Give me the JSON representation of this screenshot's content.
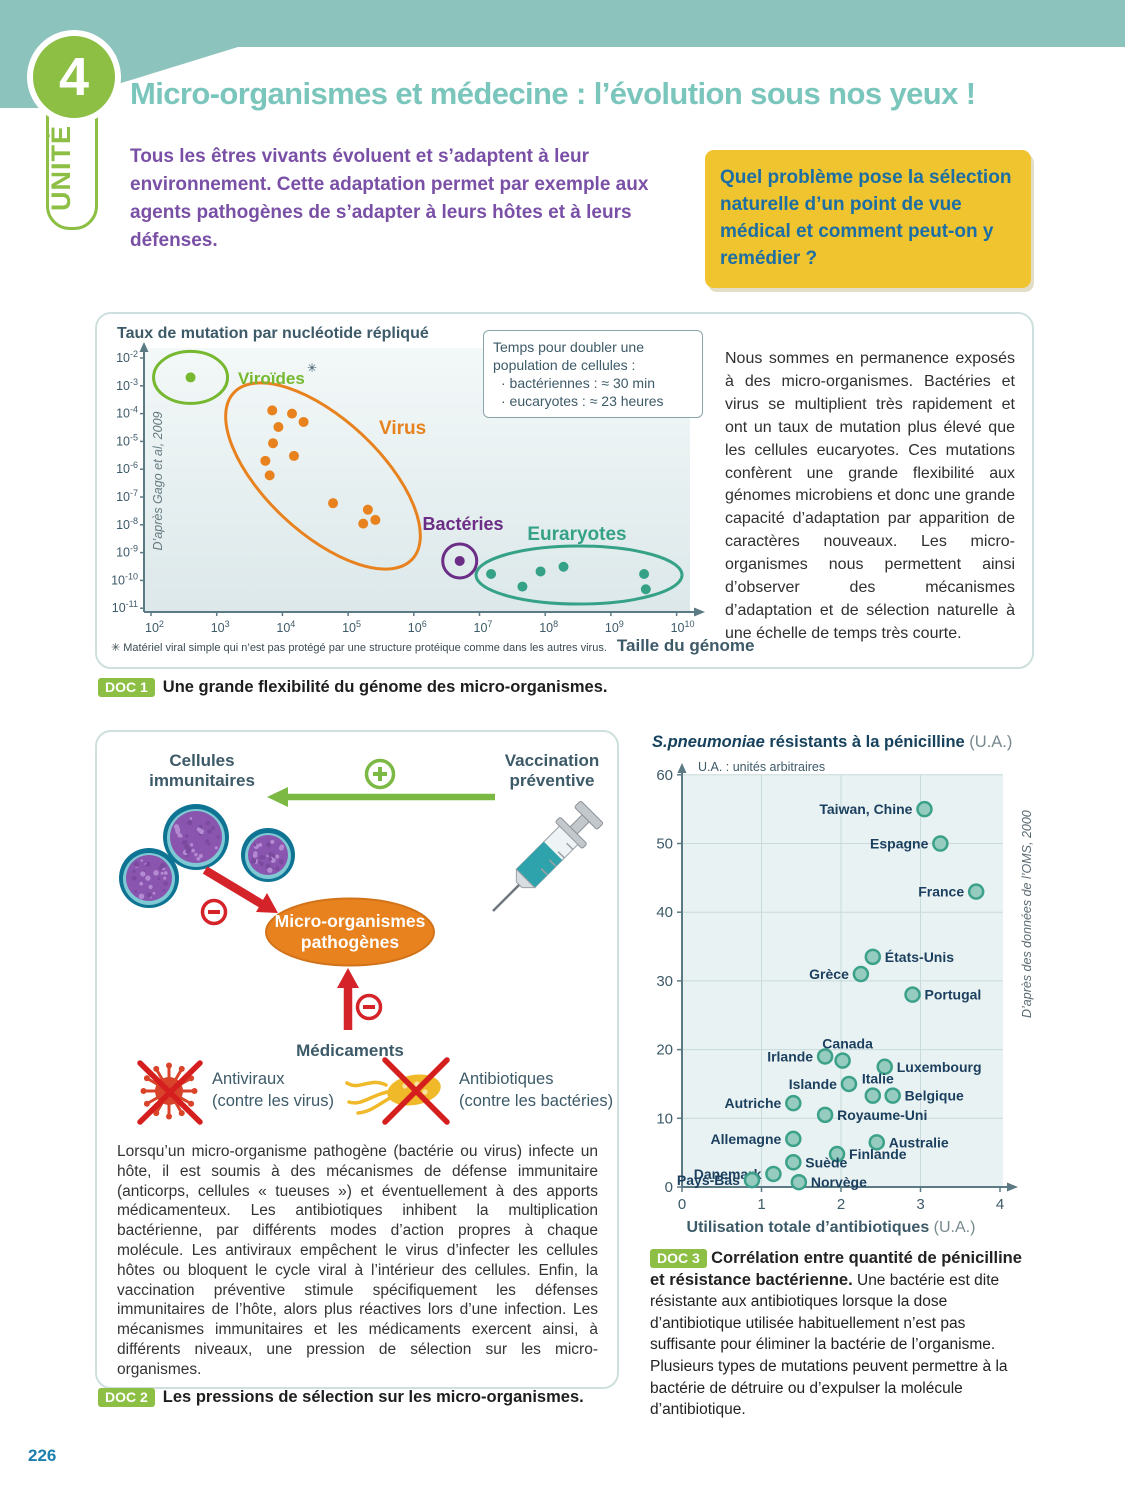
{
  "page": {
    "number": "226"
  },
  "header": {
    "unit_number": "4",
    "unit_label": "UNITÉ",
    "title": "Micro-organismes et médecine : l’évolution sous nos yeux !",
    "intro": "Tous les êtres vivants évoluent et s’adaptent à leur environnement. Cette adaptation permet par exemple aux agents pathogènes de s’adapter à leurs hôtes et à leurs défenses.",
    "question": "Quel problème pose la sélection naturelle d’un point de vue médical et comment peut-on y remédier ?"
  },
  "doc1": {
    "badge": "DOC 1",
    "caption": "Une grande flexibilité du génome des micro-organismes.",
    "source": "D’après Gago et al, 2009",
    "asterisk": "✳",
    "legend": {
      "title": "Temps pour doubler une population de cellules :",
      "items": [
        "· bactériennes : ≈ 30 min",
        "· eucaryotes : ≈ 23 heures"
      ]
    },
    "side_text": "Nous sommes en permanence exposés à des micro-organismes. Bactéries et virus se multiplient très rapidement et ont un taux de mutation plus élevé que les cellules eucaryotes. Ces mutations confèrent une grande flexibilité aux génomes microbiens et donc une grande capacité d’adaptation par apparition de caractères nouveaux. Les micro-organismes nous permettent ainsi d’observer des mécanismes d’adaptation et de sélection naturelle à une échelle de temps très courte.",
    "footnote": "✳ Matériel viral simple qui n’est pas protégé par une structure protéique comme dans les autres virus.",
    "x_axis_label": "Taille du génome"
  },
  "doc2": {
    "badge": "DOC 2",
    "caption": "Les pressions de sélection sur les micro-organismes.",
    "diagram": {
      "cells_line1": "Cellules",
      "cells_line2": "immunitaires",
      "vaccination_line1": "Vaccination",
      "vaccination_line2": "préventive",
      "pathogens_line1": "Micro-organismes",
      "pathogens_line2": "pathogènes",
      "medicaments": "Médicaments",
      "antiviraux_line1": "Antiviraux",
      "antiviraux_line2": "(contre les virus)",
      "antibiotiques_line1": "Antibiotiques",
      "antibiotiques_line2": "(contre les bactéries)"
    },
    "body": "Lorsqu’un micro-organisme pathogène (bactérie ou virus) infecte un hôte, il est soumis à des mécanismes de défense immunitaire (anticorps, cellules « tueuses ») et éventuellement à des apports médicamenteux. Les antibiotiques inhibent la multiplication bactérienne, par différents modes d’action propres à chaque molécule. Les antiviraux empêchent le virus d’infecter les cellules hôtes ou bloquent le cycle viral à l’intérieur des cellules. Enfin, la vaccination préventive stimule spécifiquement les défenses immunitaires de l’hôte, alors plus réactives lors d’une infection. Les mécanismes immunitaires et les médicaments exercent ainsi, à différents niveaux, une pression de sélection sur les micro-organismes."
  },
  "doc3": {
    "badge": "DOC 3",
    "title_italic": "S.pneumoniae",
    "title_rest": " résistants à la pénicilline ",
    "title_unit": "(U.A.)",
    "subtitle": "U.A. : unités arbitraires",
    "source": "D’après des données de l’OMS, 2000",
    "xlabel_bold": "Utilisation totale d’antibiotiques ",
    "xlabel_unit": "(U.A.)",
    "caption_bold": "Corrélation entre quantité de pénicilline et résistance bactérienne.",
    "caption_rest": " Une bactérie est dite résistante aux antibiotiques lorsque la dose d’antibiotique utilisée habituellement n’est pas suffisante pour éliminer la bactérie de l’organisme. Plusieurs types de mutations peuvent permettre à la bactérie de détruire ou d’expulser la molécule d’antibiotique."
  },
  "chart_data": [
    {
      "id": "doc1-mutation-vs-genome",
      "type": "scatter",
      "title": "Taux de mutation par nucléotide répliqué",
      "xlabel": "Taille du génome",
      "x_scale": "log",
      "y_scale": "log",
      "xlim": [
        100,
        10000000000
      ],
      "ylim": [
        1e-11,
        0.01
      ],
      "x_tick_exponents": [
        2,
        3,
        4,
        5,
        6,
        7,
        8,
        9,
        10
      ],
      "y_tick_exponents": [
        -2,
        -3,
        -4,
        -5,
        -6,
        -7,
        -8,
        -9,
        -10,
        -11
      ],
      "legend_note": "Temps pour doubler une population de cellules : bactériennes ≈ 30 min ; eucaryotes ≈ 23 heures",
      "series": [
        {
          "name": "Viroïdes",
          "color": "#76b82f",
          "points": [
            [
              400,
              0.002
            ]
          ]
        },
        {
          "name": "Virus",
          "color": "#e8821e",
          "points": [
            [
              7000,
              0.00013
            ],
            [
              14000,
              0.0001
            ],
            [
              21000,
              5e-05
            ],
            [
              8700,
              3.3e-05
            ],
            [
              7200,
              8.6e-06
            ],
            [
              15000,
              3e-06
            ],
            [
              5500,
              2e-06
            ],
            [
              6400,
              6e-07
            ],
            [
              59000,
              6e-08
            ],
            [
              200000,
              3.5e-08
            ],
            [
              260000,
              1.5e-08
            ],
            [
              170000,
              1.1e-08
            ]
          ]
        },
        {
          "name": "Bactéries",
          "color": "#6b2d86",
          "points": [
            [
              5000000,
              5e-10
            ]
          ]
        },
        {
          "name": "Euraryotes",
          "color": "#35a287",
          "points": [
            [
              15000000,
              1.7e-10
            ],
            [
              45000000,
              6e-11
            ],
            [
              85000000,
              2.1e-10
            ],
            [
              190000000,
              3.1e-10
            ],
            [
              3200000000,
              1.7e-10
            ],
            [
              3400000000,
              4.8e-11
            ]
          ]
        }
      ]
    },
    {
      "id": "doc3-resistance-vs-antibiotics",
      "type": "scatter",
      "title": "S.pneumoniae résistants à la pénicilline (U.A.)",
      "subtitle": "U.A. : unités arbitraires",
      "xlabel": "Utilisation totale d’antibiotiques (U.A.)",
      "xlim": [
        0,
        4
      ],
      "ylim": [
        0,
        60
      ],
      "x_ticks": [
        0,
        1,
        2,
        3,
        4
      ],
      "y_ticks": [
        0,
        10,
        20,
        30,
        40,
        50,
        60
      ],
      "point_fill": "#96ccc0",
      "point_stroke": "#3ba189",
      "points": [
        {
          "label": "Taiwan, Chine",
          "x": 3.05,
          "y": 55,
          "side": "left"
        },
        {
          "label": "Espagne",
          "x": 3.25,
          "y": 50,
          "side": "left"
        },
        {
          "label": "France",
          "x": 3.7,
          "y": 43,
          "side": "left"
        },
        {
          "label": "États-Unis",
          "x": 2.4,
          "y": 33.5,
          "side": "right"
        },
        {
          "label": "Grèce",
          "x": 2.25,
          "y": 31,
          "side": "left"
        },
        {
          "label": "Portugal",
          "x": 2.9,
          "y": 28,
          "side": "right"
        },
        {
          "label": "Irlande",
          "x": 1.8,
          "y": 19,
          "side": "left"
        },
        {
          "label": "Canada",
          "x": 2.02,
          "y": 18.4,
          "side": "above"
        },
        {
          "label": "Luxembourg",
          "x": 2.55,
          "y": 17.5,
          "side": "right"
        },
        {
          "label": "Islande",
          "x": 2.1,
          "y": 15,
          "side": "left"
        },
        {
          "label": "Italie",
          "x": 2.4,
          "y": 13.3,
          "side": "above"
        },
        {
          "label": "Belgique",
          "x": 2.65,
          "y": 13.3,
          "side": "right"
        },
        {
          "label": "Autriche",
          "x": 1.4,
          "y": 12.2,
          "side": "left"
        },
        {
          "label": "Royaume-Uni",
          "x": 1.8,
          "y": 10.5,
          "side": "right"
        },
        {
          "label": "Allemagne",
          "x": 1.4,
          "y": 7,
          "side": "left"
        },
        {
          "label": "Australie",
          "x": 2.45,
          "y": 6.5,
          "side": "right"
        },
        {
          "label": "Finlande",
          "x": 1.95,
          "y": 4.8,
          "side": "right"
        },
        {
          "label": "Suède",
          "x": 1.4,
          "y": 3.6,
          "side": "right"
        },
        {
          "label": "Danemark",
          "x": 1.15,
          "y": 1.9,
          "side": "left"
        },
        {
          "label": "Pays-Bas",
          "x": 0.88,
          "y": 1.0,
          "side": "left"
        },
        {
          "label": "Norvège",
          "x": 1.47,
          "y": 0.7,
          "side": "right"
        }
      ]
    }
  ]
}
